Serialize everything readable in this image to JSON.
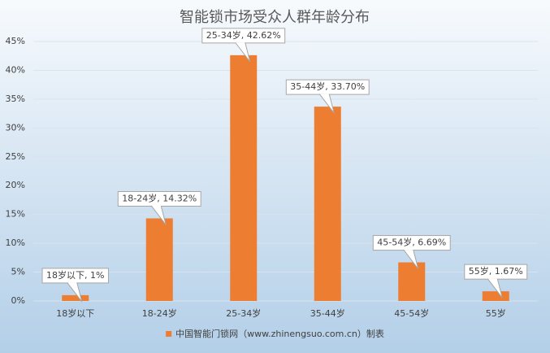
{
  "chart_data": {
    "type": "bar",
    "title": "智能锁市场受众人群年龄分布",
    "categories": [
      "18岁以下",
      "18-24岁",
      "25-34岁",
      "35-44岁",
      "45-54岁",
      "55岁"
    ],
    "series": [
      {
        "name": "中国智能门锁网（www.zhinengsuo.com.cn）制表",
        "color": "#ed7d31",
        "values": [
          1,
          14.32,
          42.62,
          33.7,
          6.69,
          1.67
        ],
        "value_labels": [
          "18岁以下, 1%",
          "18-24岁, 14.32%",
          "25-34岁, 42.62%",
          "35-44岁, 33.70%",
          "45-54岁, 6.69%",
          "55岁, 1.67%"
        ]
      }
    ],
    "ylim": [
      0,
      45
    ],
    "yticks": [
      {
        "value": 0,
        "label": "0%"
      },
      {
        "value": 5,
        "label": "5%"
      },
      {
        "value": 10,
        "label": "10%"
      },
      {
        "value": 15,
        "label": "15%"
      },
      {
        "value": 20,
        "label": "20%"
      },
      {
        "value": 25,
        "label": "25%"
      },
      {
        "value": 30,
        "label": "30%"
      },
      {
        "value": 35,
        "label": "35%"
      },
      {
        "value": 40,
        "label": "40%"
      },
      {
        "value": 45,
        "label": "45%"
      }
    ],
    "grid": true
  }
}
